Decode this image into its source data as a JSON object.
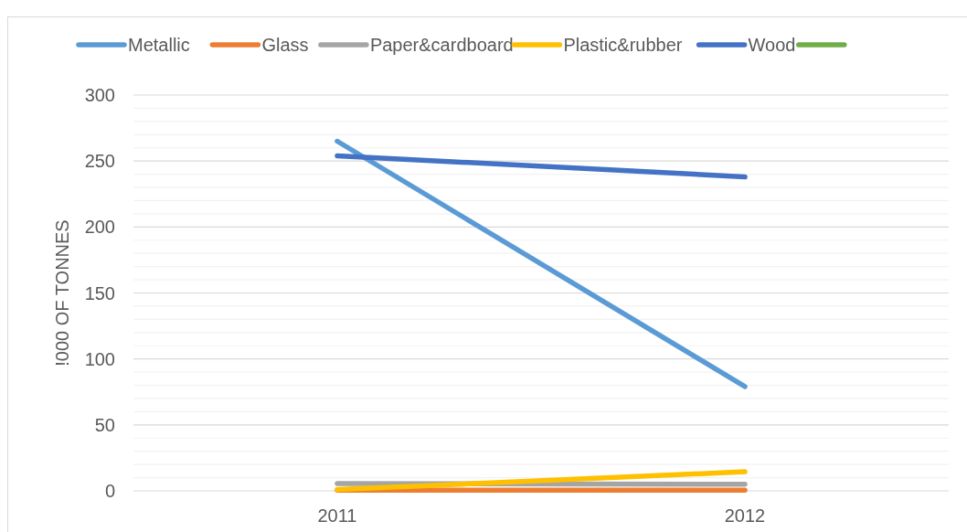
{
  "chart_data": {
    "type": "line",
    "ylabel": "!000 OF TONNES",
    "categories": [
      "2011",
      "2012"
    ],
    "series": [
      {
        "name": "Metallic",
        "color": "#5b9bd5",
        "values": [
          265,
          79
        ]
      },
      {
        "name": "Glass",
        "color": "#ed7d31",
        "values": [
          0.5,
          0.5
        ]
      },
      {
        "name": "Paper&cardboard",
        "color": "#a5a5a5",
        "values": [
          5.5,
          5
        ]
      },
      {
        "name": "Plastic&rubber",
        "color": "#ffc000",
        "values": [
          1,
          14.5
        ]
      },
      {
        "name": "Wood",
        "color": "#4472c4",
        "values": [
          254,
          238
        ]
      },
      {
        "color": "#70ad47",
        "values": [
          null,
          null
        ]
      }
    ],
    "ylim": [
      0,
      300
    ],
    "yticks": [
      0,
      {
        "value": 10,
        "label": null
      },
      {
        "value": 20,
        "label": null
      },
      {
        "value": 30,
        "label": null
      },
      {
        "value": 40,
        "label": null
      },
      50,
      {
        "value": 60,
        "label": null
      },
      {
        "value": 70,
        "label": null
      },
      {
        "value": 80,
        "label": null
      },
      {
        "value": 90,
        "label": null
      },
      100,
      {
        "value": 110,
        "label": null
      },
      {
        "value": 120,
        "label": null
      },
      {
        "value": 130,
        "label": null
      },
      {
        "value": 140,
        "label": null
      },
      150,
      {
        "value": 160,
        "label": null
      },
      {
        "value": 170,
        "label": null
      },
      {
        "value": 180,
        "label": null
      },
      {
        "value": 190,
        "label": null
      },
      200,
      {
        "value": 210,
        "label": null
      },
      {
        "value": 220,
        "label": null
      },
      {
        "value": 230,
        "label": null
      },
      {
        "value": 240,
        "label": null
      },
      250,
      {
        "value": 260,
        "label": null
      },
      {
        "value": 270,
        "label": null
      },
      {
        "value": 280,
        "label": null
      },
      {
        "value": 290,
        "label": null
      },
      300
    ],
    "grid": true,
    "legend": "top",
    "marker": "none",
    "line_style": "solid"
  }
}
